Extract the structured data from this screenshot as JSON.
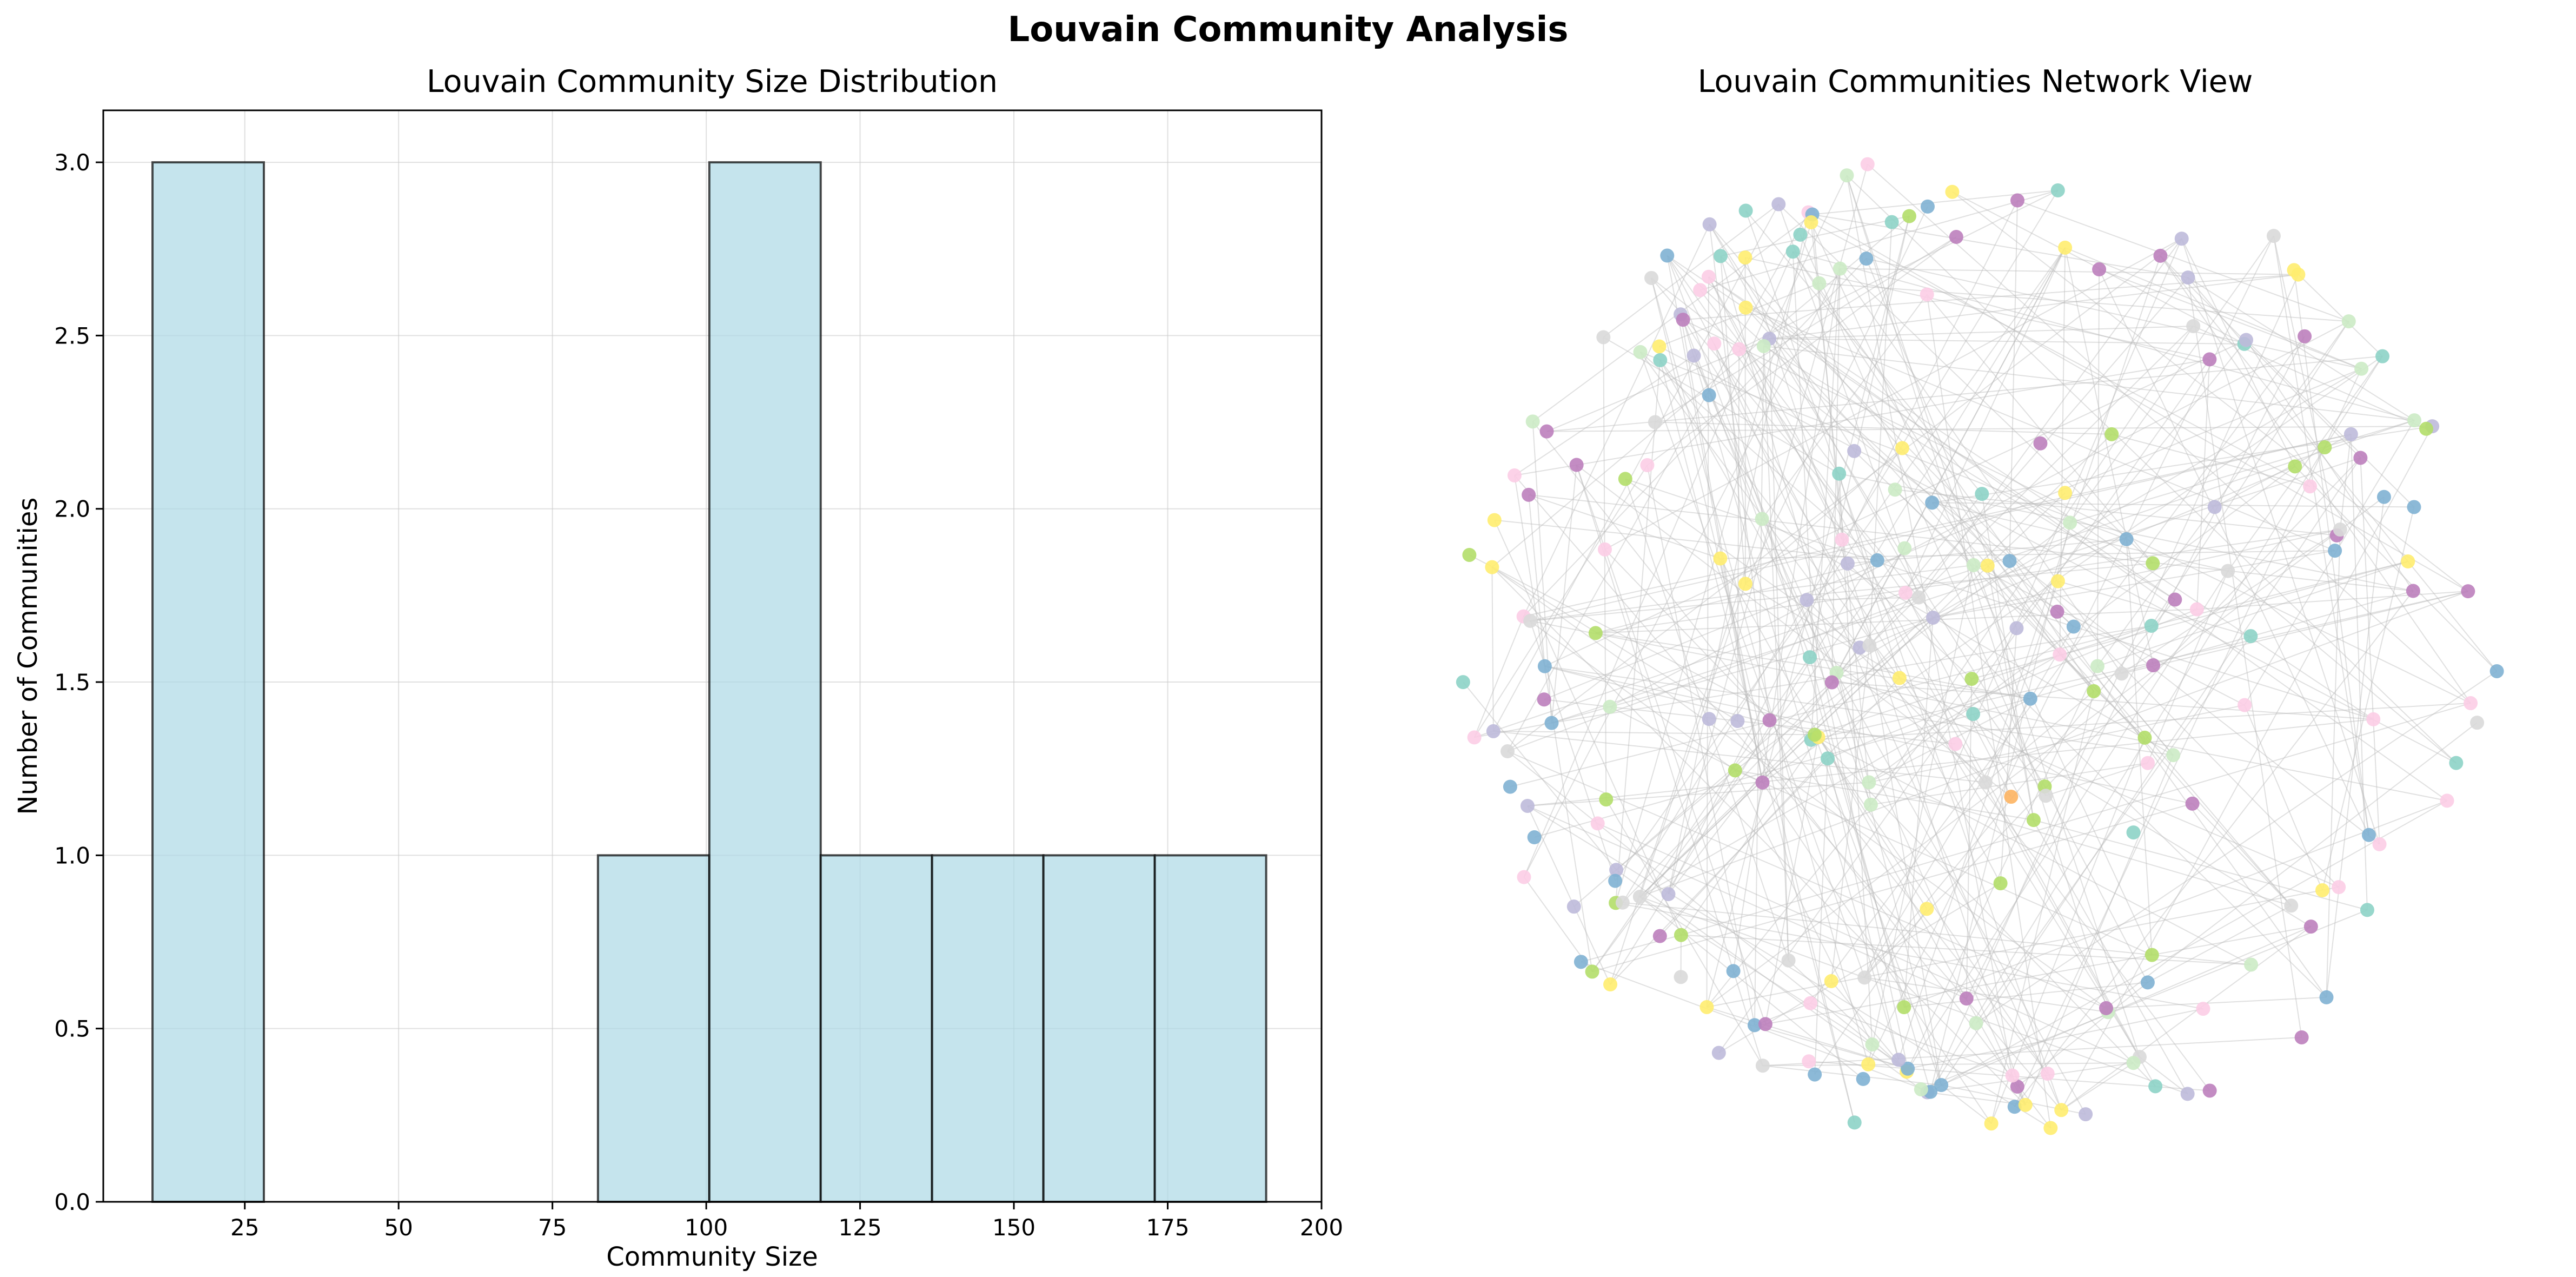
{
  "figure": {
    "title": "Louvain Community Analysis"
  },
  "chart_data": [
    {
      "type": "bar",
      "title": "Louvain Community Size Distribution",
      "xlabel": "Community Size",
      "ylabel": "Number of Communities",
      "xlim": [
        2,
        200
      ],
      "ylim": [
        0,
        3.15
      ],
      "xticks": [
        25,
        50,
        75,
        100,
        125,
        150,
        175,
        200
      ],
      "yticks": [
        0.0,
        0.5,
        1.0,
        1.5,
        2.0,
        2.5,
        3.0
      ],
      "grid": true,
      "bin_edges": [
        10,
        28.1,
        46.2,
        64.3,
        82.4,
        100.5,
        118.6,
        136.7,
        154.8,
        172.9,
        191
      ],
      "values": [
        3,
        0,
        0,
        0,
        1,
        3,
        1,
        1,
        1,
        1
      ],
      "colors": {
        "bar_fill": "#add8e6",
        "bar_edge": "#000000",
        "grid": "#cccccc"
      }
    },
    {
      "type": "network",
      "title": "Louvain Communities Network View",
      "axes": "off",
      "node_palette": [
        "#80b1d3",
        "#8dd3c7",
        "#b3de69",
        "#ccebc5",
        "#d9d9d9",
        "#fccde5",
        "#ffed6f",
        "#bebada",
        "#bc80bd",
        "#fdb462"
      ],
      "edge_color": "#bbbbbb",
      "node_count": 250,
      "edge_count": 420
    }
  ]
}
